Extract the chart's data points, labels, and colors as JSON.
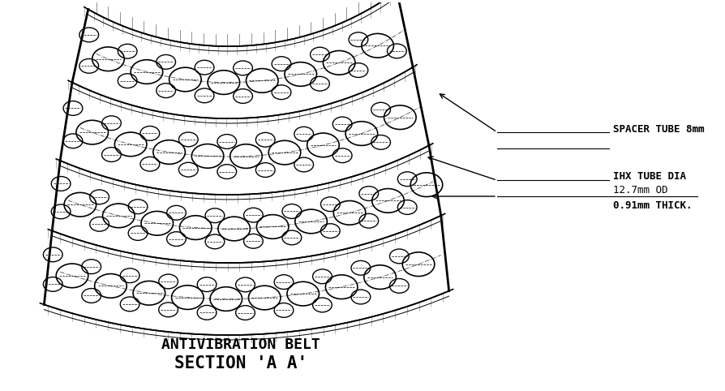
{
  "title1": "ANTIVIBRATION BELT",
  "title2": "SECTION 'A A'",
  "label1": "SPACER TUBE 8mm",
  "label2": "IHX TUBE DIA",
  "label3": "12.7mm OD",
  "label4": "0.91mm THICK.",
  "bg_color": "#ffffff",
  "line_color": "#000000",
  "title_fontsize": 13,
  "subtitle_fontsize": 15,
  "label_fontsize": 9
}
